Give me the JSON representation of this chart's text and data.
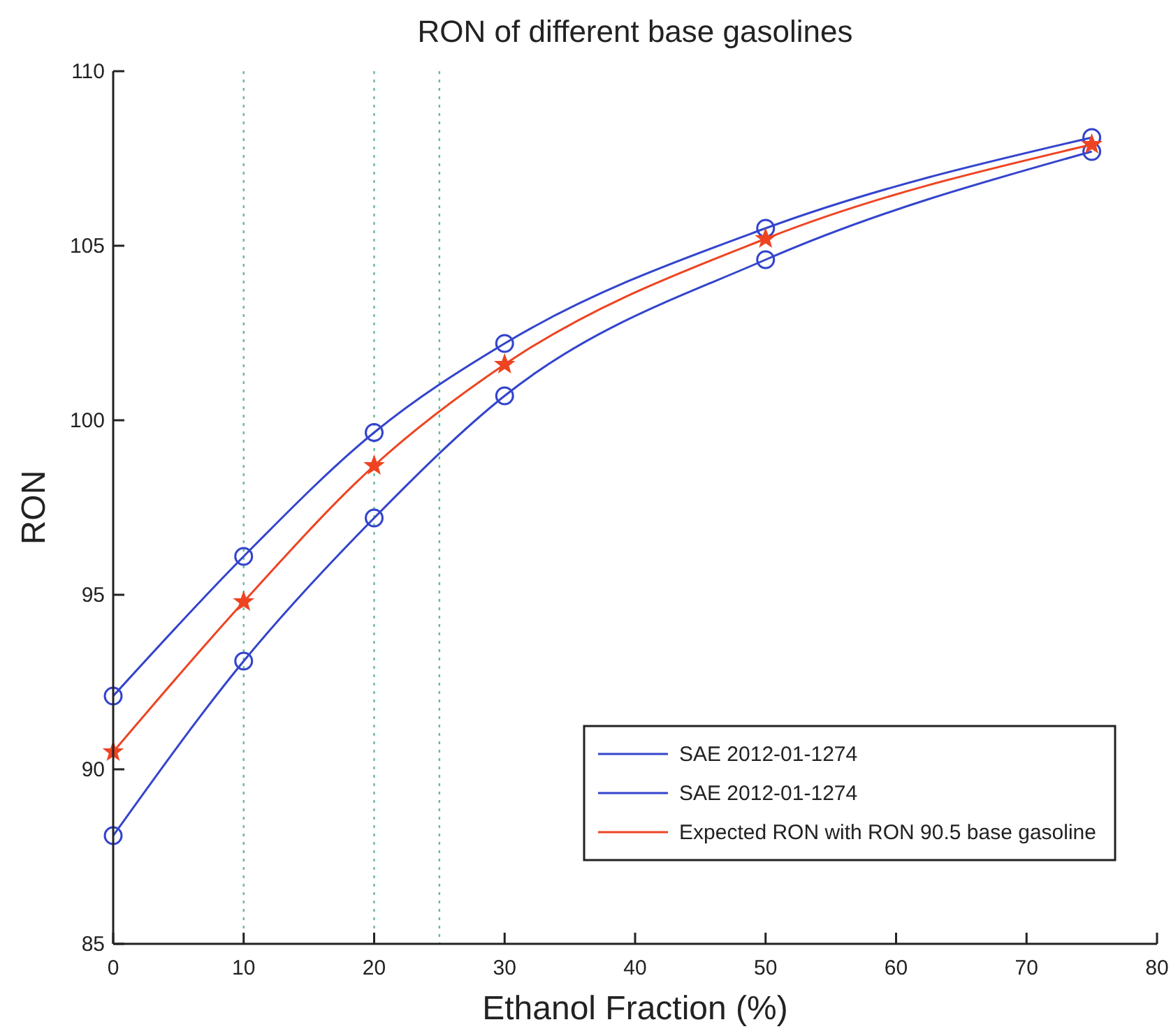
{
  "chart_data": {
    "type": "line",
    "title": "RON of different base gasolines",
    "xlabel": "Ethanol Fraction (%)",
    "ylabel": "RON",
    "x": [
      0,
      10,
      20,
      30,
      50,
      75
    ],
    "series": [
      {
        "name": "SAE 2012-01-1274",
        "color": "#3344cc",
        "marker": "circle",
        "values": [
          92.1,
          96.1,
          99.65,
          102.2,
          105.5,
          108.1
        ]
      },
      {
        "name": "SAE 2012-01-1274",
        "color": "#3344cc",
        "marker": "circle",
        "values": [
          88.1,
          93.1,
          97.2,
          100.7,
          104.6,
          107.7
        ]
      },
      {
        "name": "Expected RON with RON 90.5 base gasoline",
        "color": "#ee4422",
        "marker": "star",
        "values": [
          90.5,
          94.8,
          98.7,
          101.6,
          105.2,
          107.9
        ]
      }
    ],
    "xlim": [
      0,
      80
    ],
    "xticks": [
      0,
      10,
      20,
      30,
      40,
      50,
      60,
      70,
      80
    ],
    "ylim": [
      85,
      110
    ],
    "yticks": [
      85,
      90,
      95,
      100,
      105,
      110
    ],
    "ref_lines": [
      {
        "axis": "x",
        "value": 10,
        "color": "#66bb99",
        "line_style": "dotted"
      },
      {
        "axis": "x",
        "value": 20,
        "color": "#66bb99",
        "line_style": "dotted"
      },
      {
        "axis": "x",
        "value": 25,
        "color": "#66bb99",
        "line_style": "dotted"
      }
    ],
    "grid": false,
    "legend": "bottom right",
    "line_style": "solid"
  }
}
